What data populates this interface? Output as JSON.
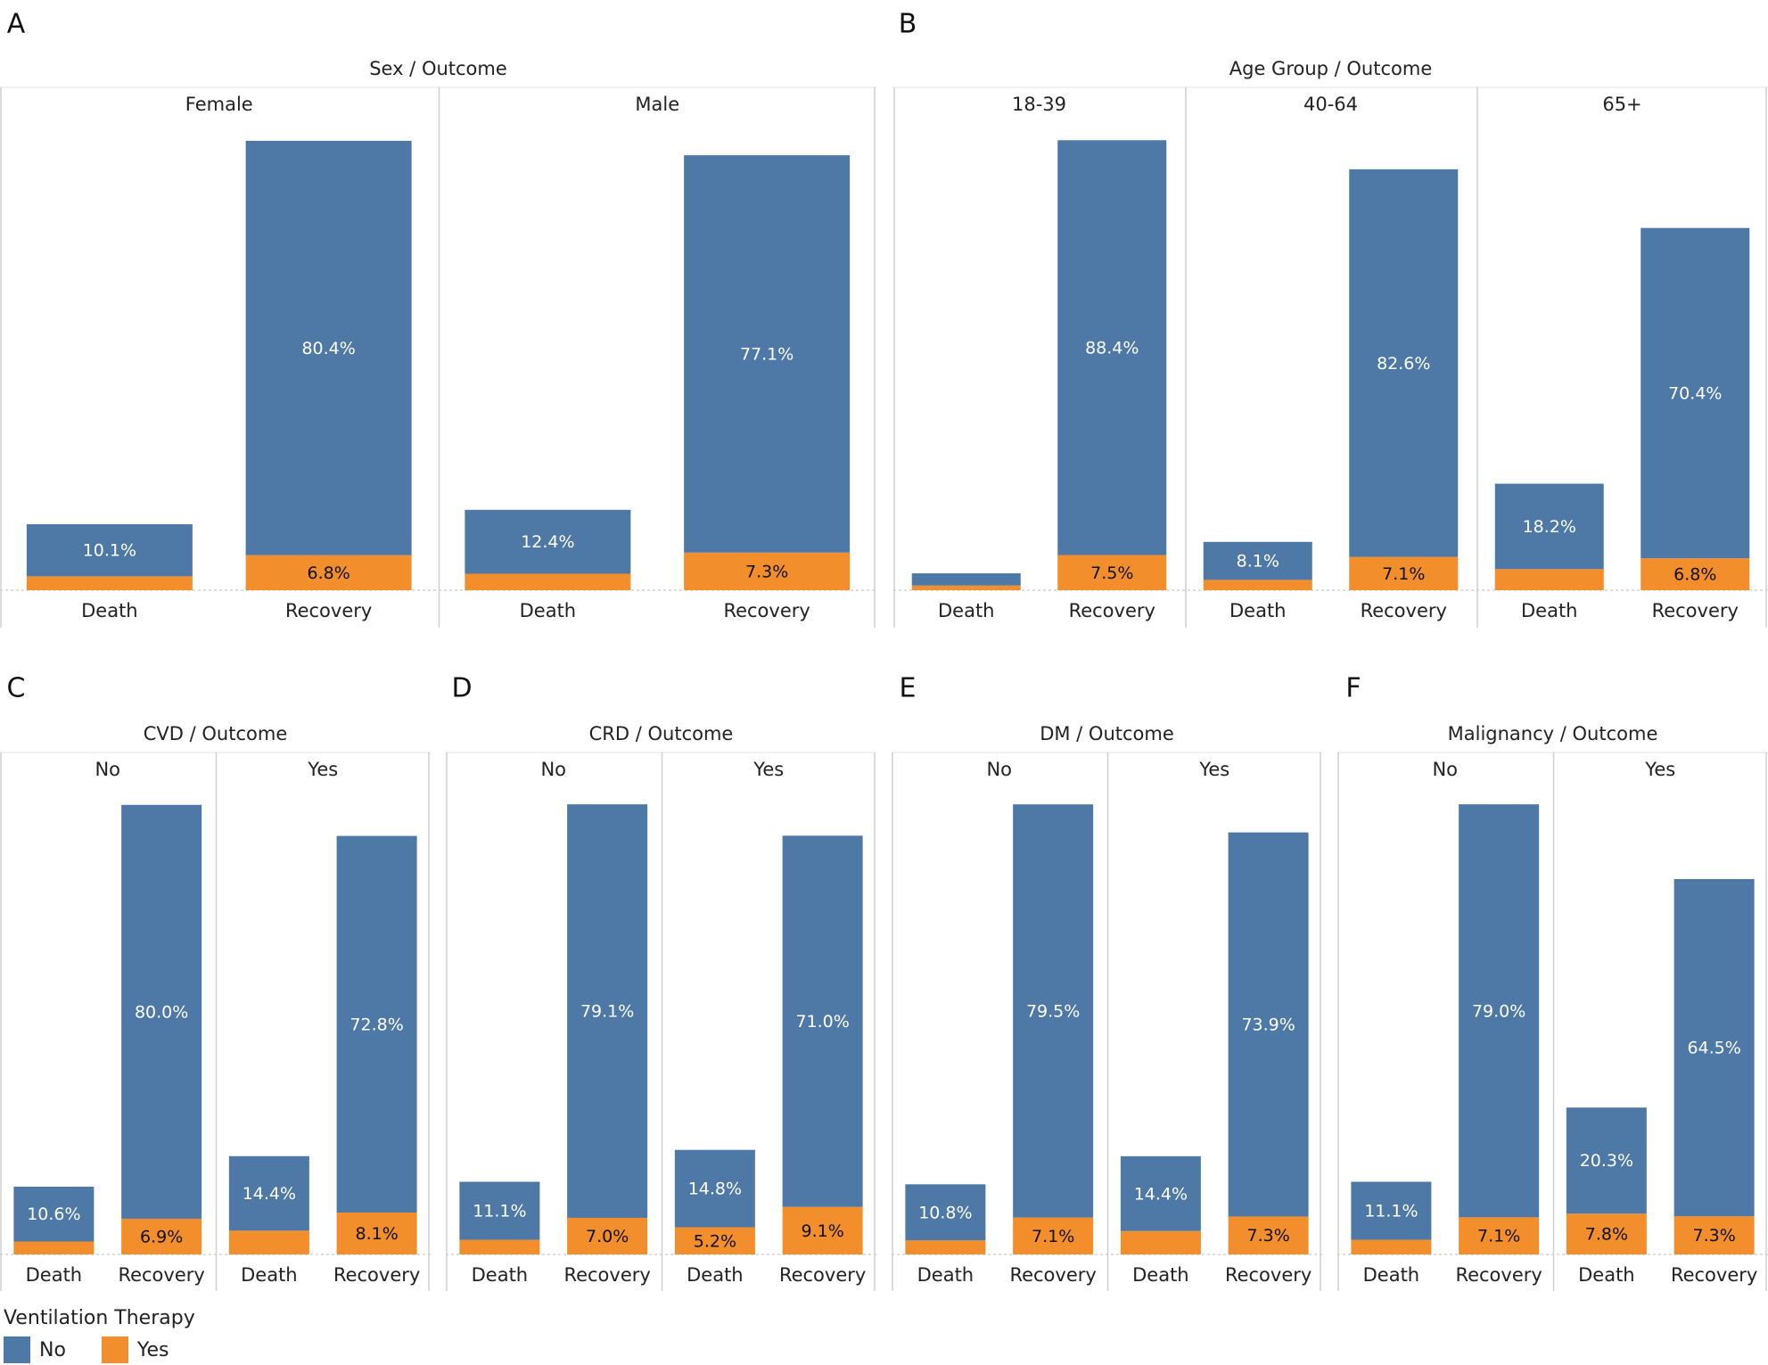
{
  "colors": {
    "no": "#4E79A7",
    "yes": "#F28E2B"
  },
  "legend": {
    "title": "Ventilation Therapy",
    "items": [
      {
        "label": "No",
        "color": "#4E79A7"
      },
      {
        "label": "Yes",
        "color": "#F28E2B"
      }
    ]
  },
  "chart_data": [
    {
      "panel": "A",
      "type": "bar",
      "stacked": true,
      "title": "Sex  /  Outcome",
      "ylim": [
        0,
        86.5
      ],
      "groups": [
        {
          "name": "Female",
          "categories": [
            "Death",
            "Recovery"
          ],
          "series": [
            {
              "name": "Yes",
              "values": [
                2.7,
                6.8
              ],
              "labels": [
                "",
                "6.8%"
              ]
            },
            {
              "name": "No",
              "values": [
                10.1,
                80.4
              ],
              "labels": [
                "10.1%",
                "80.4%"
              ]
            }
          ]
        },
        {
          "name": "Male",
          "categories": [
            "Death",
            "Recovery"
          ],
          "series": [
            {
              "name": "Yes",
              "values": [
                3.2,
                7.3
              ],
              "labels": [
                "",
                "7.3%"
              ]
            },
            {
              "name": "No",
              "values": [
                12.4,
                77.1
              ],
              "labels": [
                "12.4%",
                "77.1%"
              ]
            }
          ]
        }
      ]
    },
    {
      "panel": "B",
      "type": "bar",
      "stacked": true,
      "title": "Age Group  /  Outcome",
      "ylim": [
        0,
        95
      ],
      "groups": [
        {
          "name": "18-39",
          "categories": [
            "Death",
            "Recovery"
          ],
          "series": [
            {
              "name": "Yes",
              "values": [
                1.0,
                7.5
              ],
              "labels": [
                "",
                "7.5%"
              ]
            },
            {
              "name": "No",
              "values": [
                2.6,
                88.4
              ],
              "labels": [
                "",
                "88.4%"
              ]
            }
          ]
        },
        {
          "name": "40-64",
          "categories": [
            "Death",
            "Recovery"
          ],
          "series": [
            {
              "name": "Yes",
              "values": [
                2.2,
                7.1
              ],
              "labels": [
                "",
                "7.1%"
              ]
            },
            {
              "name": "No",
              "values": [
                8.1,
                82.6
              ],
              "labels": [
                "8.1%",
                "82.6%"
              ]
            }
          ]
        },
        {
          "name": "65+",
          "categories": [
            "Death",
            "Recovery"
          ],
          "series": [
            {
              "name": "Yes",
              "values": [
                4.5,
                6.8
              ],
              "labels": [
                "",
                "6.8%"
              ]
            },
            {
              "name": "No",
              "values": [
                18.2,
                70.4
              ],
              "labels": [
                "18.2%",
                "70.4%"
              ]
            }
          ]
        }
      ]
    },
    {
      "panel": "C",
      "type": "bar",
      "stacked": true,
      "title": "CVD  /  Outcome",
      "ylim": [
        0,
        86.0
      ],
      "groups": [
        {
          "name": "No",
          "categories": [
            "Death",
            "Recovery"
          ],
          "series": [
            {
              "name": "Yes",
              "values": [
                2.5,
                6.9
              ],
              "labels": [
                "",
                "6.9%"
              ]
            },
            {
              "name": "No",
              "values": [
                10.6,
                80.0
              ],
              "labels": [
                "10.6%",
                "80.0%"
              ]
            }
          ]
        },
        {
          "name": "Yes",
          "categories": [
            "Death",
            "Recovery"
          ],
          "series": [
            {
              "name": "Yes",
              "values": [
                4.6,
                8.1
              ],
              "labels": [
                "",
                "8.1%"
              ]
            },
            {
              "name": "No",
              "values": [
                14.4,
                72.8
              ],
              "labels": [
                "14.4%",
                "72.8%"
              ]
            }
          ]
        }
      ]
    },
    {
      "panel": "D",
      "type": "bar",
      "stacked": true,
      "title": "CRD  /  Outcome",
      "ylim": [
        0,
        85.1
      ],
      "groups": [
        {
          "name": "No",
          "categories": [
            "Death",
            "Recovery"
          ],
          "series": [
            {
              "name": "Yes",
              "values": [
                2.8,
                7.0
              ],
              "labels": [
                "",
                "7.0%"
              ]
            },
            {
              "name": "No",
              "values": [
                11.1,
                79.1
              ],
              "labels": [
                "11.1%",
                "79.1%"
              ]
            }
          ]
        },
        {
          "name": "Yes",
          "categories": [
            "Death",
            "Recovery"
          ],
          "series": [
            {
              "name": "Yes",
              "values": [
                5.2,
                9.1
              ],
              "labels": [
                "5.2%",
                "9.1%"
              ]
            },
            {
              "name": "No",
              "values": [
                14.8,
                71.0
              ],
              "labels": [
                "14.8%",
                "71.0%"
              ]
            }
          ]
        }
      ]
    },
    {
      "panel": "E",
      "type": "bar",
      "stacked": true,
      "title": "DM  /  Outcome",
      "ylim": [
        0,
        85.6
      ],
      "groups": [
        {
          "name": "No",
          "categories": [
            "Death",
            "Recovery"
          ],
          "series": [
            {
              "name": "Yes",
              "values": [
                2.7,
                7.1
              ],
              "labels": [
                "",
                "7.1%"
              ]
            },
            {
              "name": "No",
              "values": [
                10.8,
                79.5
              ],
              "labels": [
                "10.8%",
                "79.5%"
              ]
            }
          ]
        },
        {
          "name": "Yes",
          "categories": [
            "Death",
            "Recovery"
          ],
          "series": [
            {
              "name": "Yes",
              "values": [
                4.5,
                7.3
              ],
              "labels": [
                "",
                "7.3%"
              ]
            },
            {
              "name": "No",
              "values": [
                14.4,
                73.9
              ],
              "labels": [
                "14.4%",
                "73.9%"
              ]
            }
          ]
        }
      ]
    },
    {
      "panel": "F",
      "type": "bar",
      "stacked": true,
      "title": "Malignancy  /  Outcome",
      "ylim": [
        0,
        85.1
      ],
      "groups": [
        {
          "name": "No",
          "categories": [
            "Death",
            "Recovery"
          ],
          "series": [
            {
              "name": "Yes",
              "values": [
                2.8,
                7.1
              ],
              "labels": [
                "",
                "7.1%"
              ]
            },
            {
              "name": "No",
              "values": [
                11.1,
                79.0
              ],
              "labels": [
                "11.1%",
                "79.0%"
              ]
            }
          ]
        },
        {
          "name": "Yes",
          "categories": [
            "Death",
            "Recovery"
          ],
          "series": [
            {
              "name": "Yes",
              "values": [
                7.8,
                7.3
              ],
              "labels": [
                "7.8%",
                "7.3%"
              ]
            },
            {
              "name": "No",
              "values": [
                20.3,
                64.5
              ],
              "labels": [
                "20.3%",
                "64.5%"
              ]
            }
          ]
        }
      ]
    }
  ]
}
